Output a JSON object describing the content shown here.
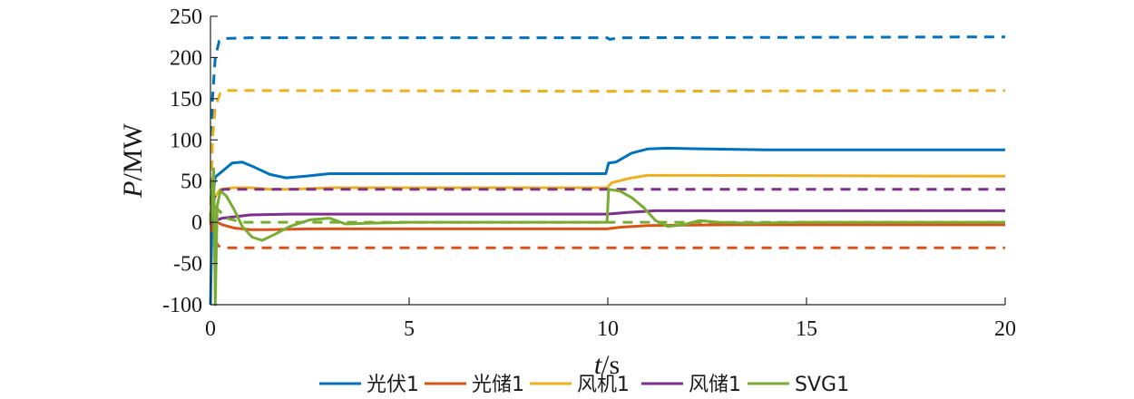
{
  "chart_data": {
    "type": "line",
    "xlabel_var": "t",
    "xlabel_unit": "/s",
    "ylabel_var": "P",
    "ylabel_unit": "/MW",
    "xlim": [
      0,
      20
    ],
    "ylim": [
      -100,
      250
    ],
    "xticks": [
      0,
      5,
      10,
      15,
      20
    ],
    "yticks": [
      -100,
      -50,
      0,
      50,
      100,
      150,
      200,
      250
    ],
    "grid": false,
    "legend_position": "bottom",
    "series": [
      {
        "name": "光伏1",
        "color": "#0072BD",
        "actual": [
          [
            0,
            -100
          ],
          [
            0.05,
            30
          ],
          [
            0.12,
            55
          ],
          [
            0.3,
            62
          ],
          [
            0.55,
            72
          ],
          [
            0.8,
            73
          ],
          [
            1.1,
            67
          ],
          [
            1.5,
            58
          ],
          [
            1.9,
            54
          ],
          [
            2.4,
            56
          ],
          [
            3,
            59
          ],
          [
            4,
            59
          ],
          [
            6,
            59
          ],
          [
            8,
            59
          ],
          [
            9.95,
            59
          ],
          [
            10.02,
            72
          ],
          [
            10.2,
            73
          ],
          [
            10.6,
            84
          ],
          [
            11,
            89
          ],
          [
            11.5,
            90
          ],
          [
            12.5,
            89
          ],
          [
            14,
            88
          ],
          [
            16,
            88
          ],
          [
            18,
            88
          ],
          [
            20,
            88
          ]
        ],
        "reference": [
          [
            0,
            0
          ],
          [
            0.05,
            150
          ],
          [
            0.12,
            200
          ],
          [
            0.22,
            220
          ],
          [
            0.35,
            223
          ],
          [
            1,
            224
          ],
          [
            5,
            224
          ],
          [
            9.98,
            224
          ],
          [
            10.05,
            222
          ],
          [
            10.3,
            224
          ],
          [
            20,
            225
          ]
        ]
      },
      {
        "name": "光储1",
        "color": "#D95319",
        "actual": [
          [
            0,
            0
          ],
          [
            0.1,
            2
          ],
          [
            0.3,
            -3
          ],
          [
            0.6,
            -7
          ],
          [
            1,
            -9
          ],
          [
            1.5,
            -9
          ],
          [
            2.5,
            -8
          ],
          [
            5,
            -8
          ],
          [
            9.98,
            -8
          ],
          [
            10.3,
            -6
          ],
          [
            11,
            -4
          ],
          [
            13,
            -3
          ],
          [
            20,
            -3
          ]
        ],
        "reference": [
          [
            0,
            0
          ],
          [
            0.08,
            -15
          ],
          [
            0.18,
            -28
          ],
          [
            0.3,
            -31
          ],
          [
            1,
            -31
          ],
          [
            10,
            -31
          ],
          [
            20,
            -31
          ]
        ]
      },
      {
        "name": "风机1",
        "color": "#EDB120",
        "actual": [
          [
            0,
            0
          ],
          [
            0.1,
            30
          ],
          [
            0.25,
            40
          ],
          [
            0.6,
            42
          ],
          [
            1,
            42
          ],
          [
            1.5,
            40
          ],
          [
            2,
            40
          ],
          [
            3,
            42
          ],
          [
            5,
            42
          ],
          [
            9.98,
            42
          ],
          [
            10.1,
            48
          ],
          [
            10.6,
            54
          ],
          [
            11,
            57
          ],
          [
            12,
            57
          ],
          [
            20,
            56
          ]
        ],
        "reference": [
          [
            0,
            0
          ],
          [
            0.05,
            100
          ],
          [
            0.12,
            140
          ],
          [
            0.25,
            157
          ],
          [
            0.4,
            160
          ],
          [
            1,
            160
          ],
          [
            10,
            159
          ],
          [
            20,
            160
          ]
        ]
      },
      {
        "name": "风储1",
        "color": "#7E2F8E",
        "actual": [
          [
            0,
            0
          ],
          [
            0.3,
            5
          ],
          [
            1,
            9
          ],
          [
            2,
            10
          ],
          [
            5,
            10
          ],
          [
            9.98,
            10
          ],
          [
            10.5,
            12
          ],
          [
            11.2,
            14
          ],
          [
            12,
            14
          ],
          [
            20,
            14
          ]
        ],
        "reference": [
          [
            0,
            0
          ],
          [
            0.1,
            30
          ],
          [
            0.2,
            38
          ],
          [
            0.35,
            40
          ],
          [
            1,
            40
          ],
          [
            10,
            40
          ],
          [
            20,
            40
          ]
        ]
      },
      {
        "name": "SVG1",
        "color": "#77AC30",
        "actual": [
          [
            0,
            0
          ],
          [
            0.08,
            65
          ],
          [
            0.12,
            -100
          ],
          [
            0.17,
            20
          ],
          [
            0.25,
            38
          ],
          [
            0.4,
            32
          ],
          [
            0.6,
            15
          ],
          [
            0.8,
            -5
          ],
          [
            1.05,
            -18
          ],
          [
            1.3,
            -22
          ],
          [
            1.6,
            -15
          ],
          [
            2,
            -5
          ],
          [
            2.5,
            3
          ],
          [
            3,
            5
          ],
          [
            3.4,
            -2
          ],
          [
            4,
            -1
          ],
          [
            5,
            0
          ],
          [
            7,
            0
          ],
          [
            9.98,
            0
          ],
          [
            10.02,
            40
          ],
          [
            10.3,
            38
          ],
          [
            10.6,
            30
          ],
          [
            10.9,
            18
          ],
          [
            11.2,
            2
          ],
          [
            11.5,
            -5
          ],
          [
            11.9,
            -3
          ],
          [
            12.3,
            2
          ],
          [
            12.8,
            0
          ],
          [
            13.5,
            -1
          ],
          [
            15,
            0
          ],
          [
            20,
            0
          ]
        ],
        "reference": [
          [
            0,
            0
          ],
          [
            0.1,
            20
          ],
          [
            0.2,
            15
          ],
          [
            0.4,
            5
          ],
          [
            0.8,
            0
          ],
          [
            1,
            0
          ],
          [
            20,
            0
          ]
        ]
      }
    ]
  }
}
